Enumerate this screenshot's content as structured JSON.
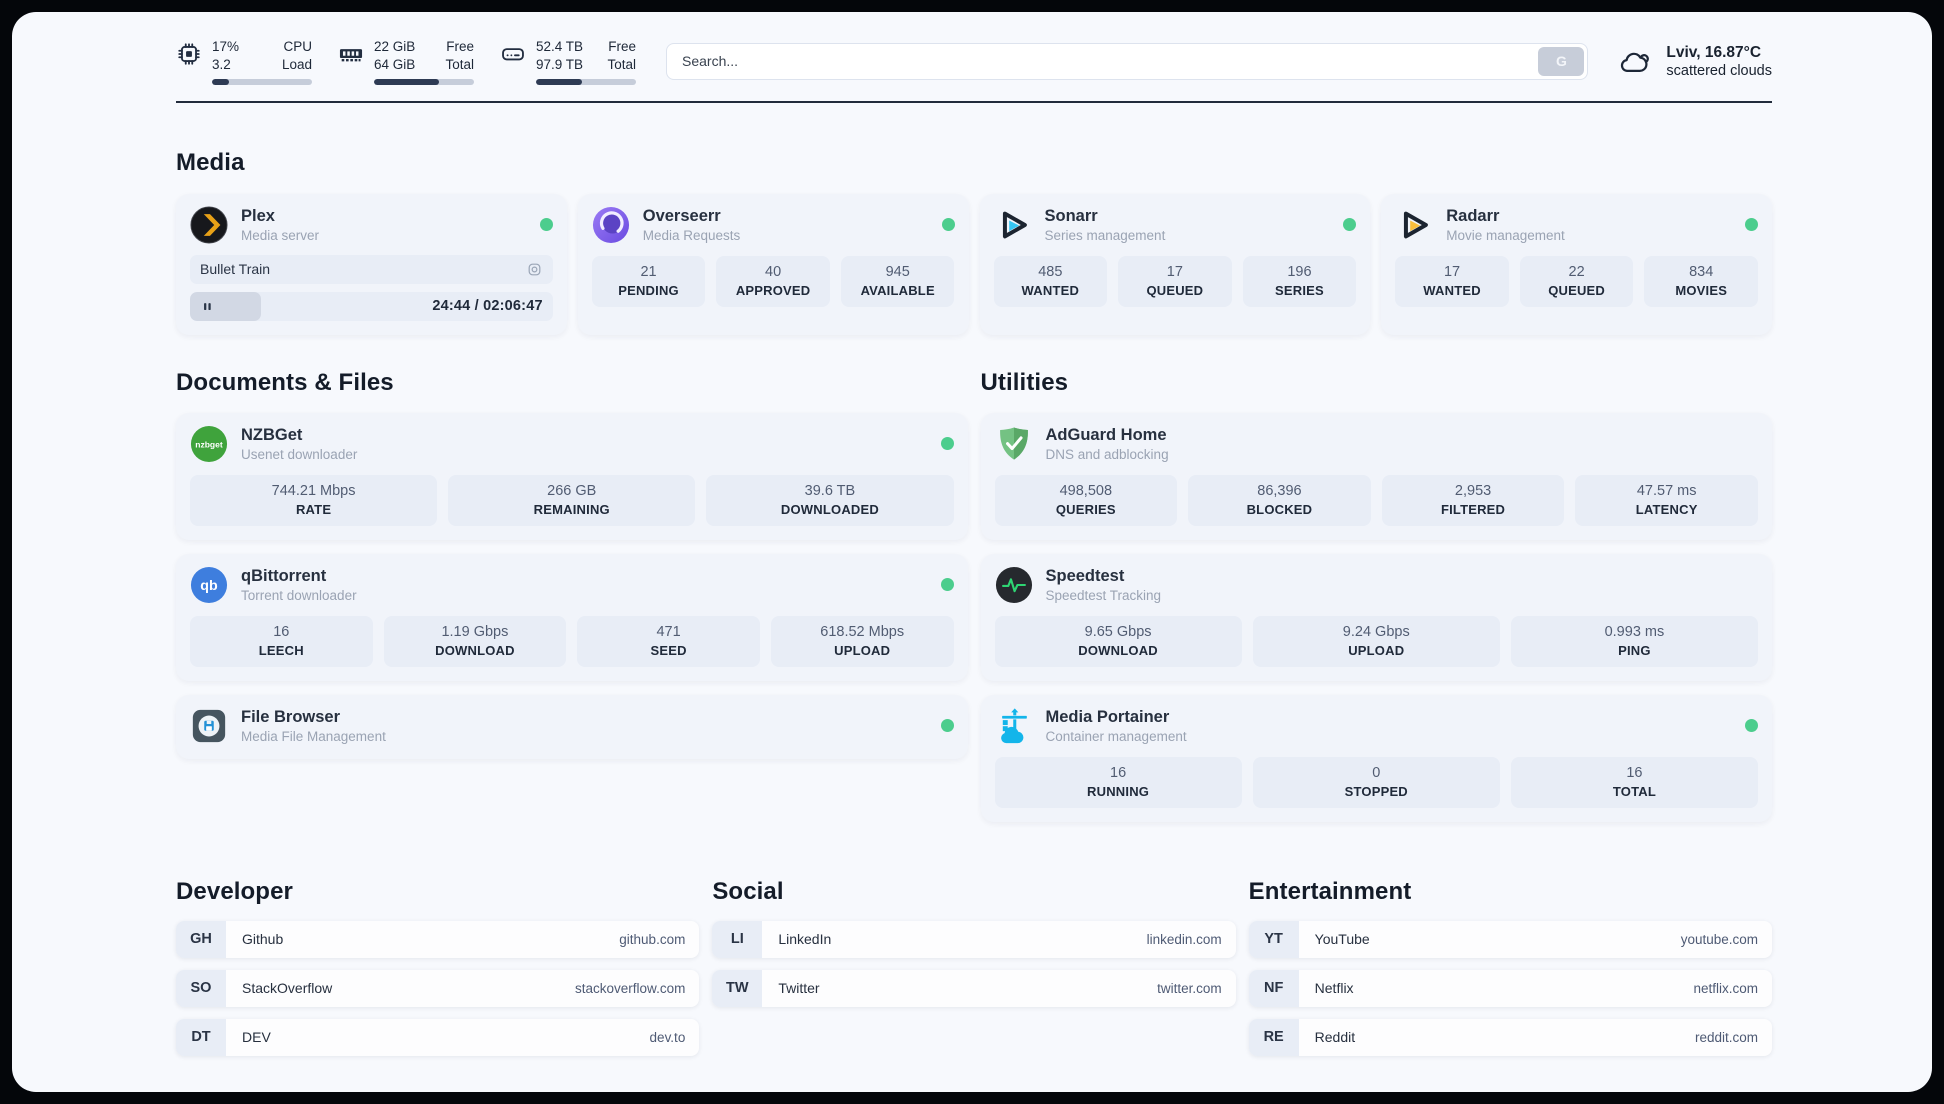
{
  "header": {
    "stats": [
      {
        "icon": "cpu-icon",
        "value_top": "17%",
        "value_bottom": "3.2",
        "label_top": "CPU",
        "label_bottom": "Load",
        "progress_pct": 17
      },
      {
        "icon": "ram-icon",
        "value_top": "22 GiB",
        "value_bottom": "64 GiB",
        "label_top": "Free",
        "label_bottom": "Total",
        "progress_pct": 65
      },
      {
        "icon": "disk-icon",
        "value_top": "52.4 TB",
        "value_bottom": "97.9 TB",
        "label_top": "Free",
        "label_bottom": "Total",
        "progress_pct": 46
      }
    ],
    "search": {
      "placeholder": "Search...",
      "button_label": "G"
    },
    "weather": {
      "icon": "cloud-icon",
      "headline": "Lviv, 16.87°C",
      "condition": "scattered clouds"
    }
  },
  "media": {
    "title": "Media",
    "plex": {
      "name": "Plex",
      "subtitle": "Media server",
      "online": true,
      "now_playing": "Bullet Train",
      "time": "24:44 / 02:06:47",
      "progress_pct": 19.5
    },
    "overseerr": {
      "name": "Overseerr",
      "subtitle": "Media Requests",
      "online": true,
      "stats": [
        {
          "value": "21",
          "label": "PENDING"
        },
        {
          "value": "40",
          "label": "APPROVED"
        },
        {
          "value": "945",
          "label": "AVAILABLE"
        }
      ]
    },
    "sonarr": {
      "name": "Sonarr",
      "subtitle": "Series management",
      "online": true,
      "stats": [
        {
          "value": "485",
          "label": "WANTED"
        },
        {
          "value": "17",
          "label": "QUEUED"
        },
        {
          "value": "196",
          "label": "SERIES"
        }
      ]
    },
    "radarr": {
      "name": "Radarr",
      "subtitle": "Movie management",
      "online": true,
      "stats": [
        {
          "value": "17",
          "label": "WANTED"
        },
        {
          "value": "22",
          "label": "QUEUED"
        },
        {
          "value": "834",
          "label": "MOVIES"
        }
      ]
    }
  },
  "documents": {
    "title": "Documents & Files",
    "nzbget": {
      "name": "NZBGet",
      "subtitle": "Usenet downloader",
      "online": true,
      "stats": [
        {
          "value": "744.21 Mbps",
          "label": "RATE"
        },
        {
          "value": "266 GB",
          "label": "REMAINING"
        },
        {
          "value": "39.6 TB",
          "label": "DOWNLOADED"
        }
      ]
    },
    "qbittorrent": {
      "name": "qBittorrent",
      "subtitle": "Torrent downloader",
      "online": true,
      "stats": [
        {
          "value": "16",
          "label": "LEECH"
        },
        {
          "value": "1.19 Gbps",
          "label": "DOWNLOAD"
        },
        {
          "value": "471",
          "label": "SEED"
        },
        {
          "value": "618.52 Mbps",
          "label": "UPLOAD"
        }
      ]
    },
    "filebrowser": {
      "name": "File Browser",
      "subtitle": "Media File Management",
      "online": true
    }
  },
  "utilities": {
    "title": "Utilities",
    "adguard": {
      "name": "AdGuard Home",
      "subtitle": "DNS and adblocking",
      "stats": [
        {
          "value": "498,508",
          "label": "QUERIES"
        },
        {
          "value": "86,396",
          "label": "BLOCKED"
        },
        {
          "value": "2,953",
          "label": "FILTERED"
        },
        {
          "value": "47.57 ms",
          "label": "LATENCY"
        }
      ]
    },
    "speedtest": {
      "name": "Speedtest",
      "subtitle": "Speedtest Tracking",
      "stats": [
        {
          "value": "9.65 Gbps",
          "label": "DOWNLOAD"
        },
        {
          "value": "9.24 Gbps",
          "label": "UPLOAD"
        },
        {
          "value": "0.993 ms",
          "label": "PING"
        }
      ]
    },
    "portainer": {
      "name": "Media Portainer",
      "subtitle": "Container management",
      "online": true,
      "stats": [
        {
          "value": "16",
          "label": "RUNNING"
        },
        {
          "value": "0",
          "label": "STOPPED"
        },
        {
          "value": "16",
          "label": "TOTAL"
        }
      ]
    }
  },
  "links": {
    "developer": {
      "title": "Developer",
      "items": [
        {
          "abbr": "GH",
          "name": "Github",
          "url": "github.com"
        },
        {
          "abbr": "SO",
          "name": "StackOverflow",
          "url": "stackoverflow.com"
        },
        {
          "abbr": "DT",
          "name": "DEV",
          "url": "dev.to"
        }
      ]
    },
    "social": {
      "title": "Social",
      "items": [
        {
          "abbr": "LI",
          "name": "LinkedIn",
          "url": "linkedin.com"
        },
        {
          "abbr": "TW",
          "name": "Twitter",
          "url": "twitter.com"
        }
      ]
    },
    "entertainment": {
      "title": "Entertainment",
      "items": [
        {
          "abbr": "YT",
          "name": "YouTube",
          "url": "youtube.com"
        },
        {
          "abbr": "NF",
          "name": "Netflix",
          "url": "netflix.com"
        },
        {
          "abbr": "RE",
          "name": "Reddit",
          "url": "reddit.com"
        }
      ]
    }
  },
  "icons": {
    "cpu-icon": "chip outline",
    "ram-icon": "memory module",
    "disk-icon": "hard drive",
    "search-button": "letter G",
    "cloud-icon": "scattered clouds outline",
    "plex-icon": "black circle gold chevron",
    "overseerr-icon": "purple eye sphere",
    "sonarr-icon": "play triangle cyan",
    "radarr-icon": "play triangle gold",
    "nzbget-icon": "green circle wordmark",
    "qbittorrent-icon": "blue circle qb",
    "filebrowser-icon": "dark tile floppy disk",
    "adguard-icon": "green shield check",
    "speedtest-icon": "dark circle green pulse",
    "portainer-icon": "blue crane containers",
    "now-playing-icon": "rounded square with circle",
    "pause-icon": "two bars",
    "online-status-dot": "green dot"
  },
  "colors": {
    "page_bg": "#f7f9fd",
    "card_bg": "#f1f4fa",
    "stat_box_bg": "#e8edf6",
    "navy": "#2e3b54",
    "status_green": "#4ccd8d",
    "plex_gold": "#e8a117",
    "sonarr_cyan": "#36c6f4",
    "radarr_gold": "#fbbf3c",
    "nzbget_green": "#3fa33c",
    "qbittorrent_blue": "#3e7ede",
    "adguard_green": "#66b574",
    "speedtest_green": "#2ed573",
    "portainer_blue": "#13b5ea"
  }
}
